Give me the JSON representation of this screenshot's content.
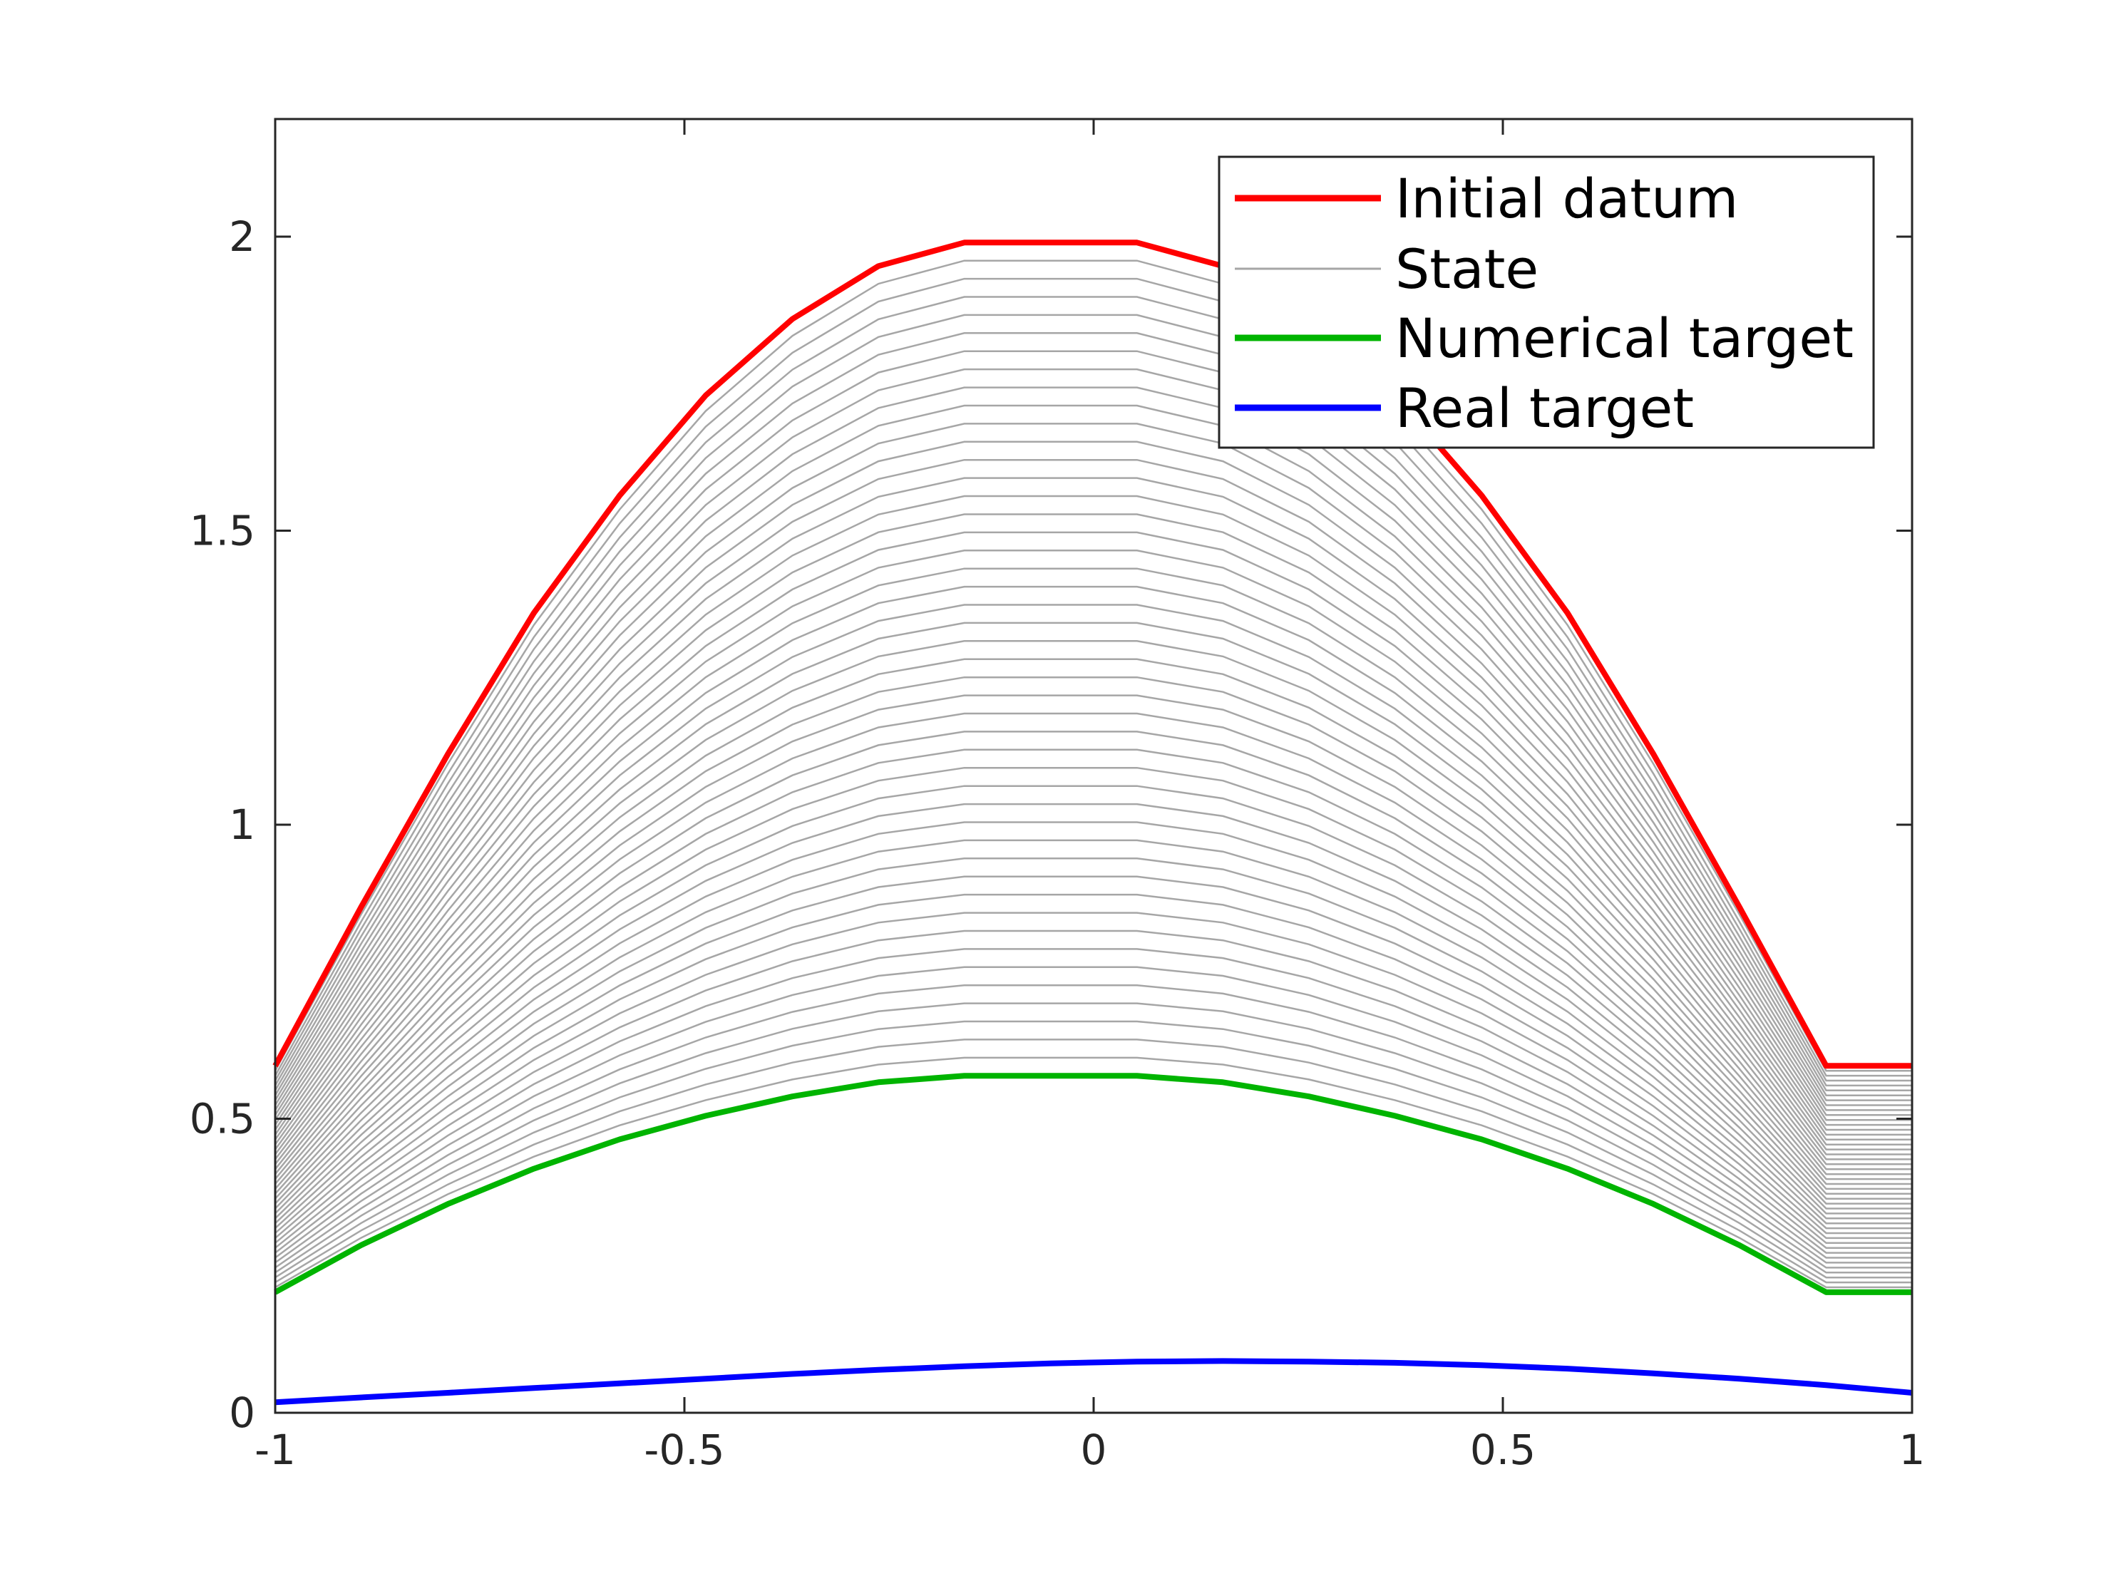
{
  "chart_data": {
    "type": "line",
    "title": "",
    "xlabel": "",
    "ylabel": "",
    "xlim": [
      -1,
      1
    ],
    "ylim": [
      0,
      2.2
    ],
    "xticks": [
      -1,
      -0.5,
      0,
      0.5,
      1
    ],
    "xtick_labels": [
      "-1",
      "-0.5",
      "0",
      "0.5",
      "1"
    ],
    "yticks": [
      0,
      0.5,
      1,
      1.5,
      2
    ],
    "ytick_labels": [
      "0",
      "0.5",
      "1",
      "1.5",
      "2"
    ],
    "grid": false,
    "legend": "top-right",
    "x": [
      -1,
      -0.895,
      -0.789,
      -0.684,
      -0.579,
      -0.474,
      -0.368,
      -0.263,
      -0.158,
      -0.053,
      0.053,
      0.158,
      0.263,
      0.368,
      0.474,
      0.579,
      0.684,
      0.789,
      0.895,
      1
    ],
    "series": [
      {
        "name": "Initial datum",
        "color": "#ff0000",
        "values": [
          0.59,
          0.86,
          1.12,
          1.36,
          1.56,
          1.73,
          1.86,
          1.95,
          1.99,
          1.99,
          1.99,
          1.95,
          1.86,
          1.73,
          1.56,
          1.36,
          1.12,
          0.86,
          0.59,
          0.59
        ]
      },
      {
        "name": "State",
        "color": "#a6a6a6",
        "count": 45,
        "note_from": "Initial datum",
        "note_to": "Numerical target"
      },
      {
        "name": "Numerical target",
        "color": "#00b400",
        "values": [
          0.205,
          0.285,
          0.355,
          0.415,
          0.465,
          0.505,
          0.538,
          0.562,
          0.573,
          0.573,
          0.573,
          0.562,
          0.538,
          0.505,
          0.465,
          0.415,
          0.355,
          0.285,
          0.205,
          0.205
        ]
      },
      {
        "name": "Real target",
        "color": "#0000ff",
        "values": [
          0.018,
          0.026,
          0.034,
          0.042,
          0.05,
          0.058,
          0.066,
          0.073,
          0.079,
          0.084,
          0.087,
          0.088,
          0.087,
          0.085,
          0.081,
          0.075,
          0.067,
          0.058,
          0.047,
          0.034
        ]
      }
    ]
  }
}
